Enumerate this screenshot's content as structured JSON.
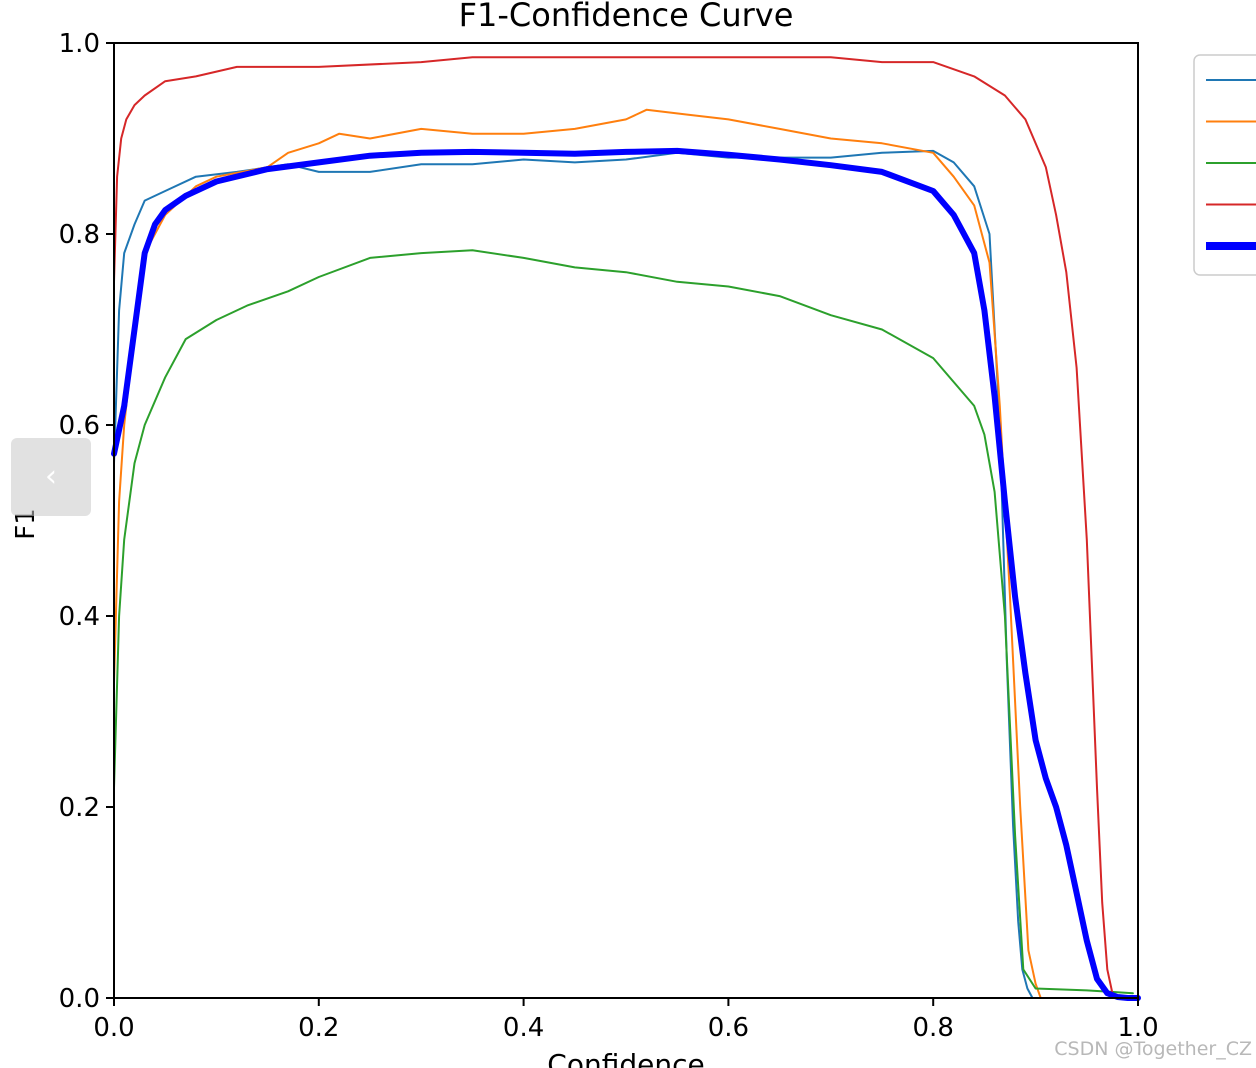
{
  "chart_data": {
    "type": "line",
    "title": "F1-Confidence Curve",
    "xlabel": "Confidence",
    "ylabel": "F1",
    "xlim": [
      0,
      1
    ],
    "ylim": [
      0,
      1
    ],
    "xticks": [
      "0.0",
      "0.2",
      "0.4",
      "0.6",
      "0.8",
      "1.0"
    ],
    "yticks": [
      "0.0",
      "0.2",
      "0.4",
      "0.6",
      "0.8",
      "1.0"
    ],
    "grid": false,
    "legend": "right, partially cut off",
    "series": [
      {
        "color": "#1f77b4",
        "width": 2,
        "x": [
          0.0,
          0.005,
          0.01,
          0.02,
          0.03,
          0.05,
          0.08,
          0.12,
          0.17,
          0.2,
          0.25,
          0.3,
          0.35,
          0.4,
          0.45,
          0.5,
          0.55,
          0.6,
          0.65,
          0.7,
          0.75,
          0.8,
          0.82,
          0.84,
          0.855,
          0.865,
          0.872,
          0.878,
          0.883,
          0.887,
          0.892,
          0.897
        ],
        "y": [
          0.56,
          0.72,
          0.78,
          0.81,
          0.835,
          0.845,
          0.86,
          0.865,
          0.873,
          0.865,
          0.865,
          0.873,
          0.873,
          0.878,
          0.875,
          0.878,
          0.885,
          0.88,
          0.88,
          0.88,
          0.885,
          0.887,
          0.875,
          0.85,
          0.8,
          0.6,
          0.35,
          0.18,
          0.08,
          0.03,
          0.01,
          0.0
        ]
      },
      {
        "color": "#ff7f0e",
        "width": 2,
        "x": [
          0.0,
          0.005,
          0.01,
          0.02,
          0.03,
          0.05,
          0.08,
          0.1,
          0.15,
          0.17,
          0.2,
          0.22,
          0.25,
          0.3,
          0.35,
          0.4,
          0.45,
          0.5,
          0.52,
          0.56,
          0.6,
          0.65,
          0.7,
          0.75,
          0.8,
          0.82,
          0.84,
          0.855,
          0.865,
          0.875,
          0.885,
          0.893,
          0.9,
          0.905
        ],
        "y": [
          0.33,
          0.52,
          0.6,
          0.7,
          0.78,
          0.82,
          0.85,
          0.86,
          0.87,
          0.885,
          0.895,
          0.905,
          0.9,
          0.91,
          0.905,
          0.905,
          0.91,
          0.92,
          0.93,
          0.925,
          0.92,
          0.91,
          0.9,
          0.895,
          0.885,
          0.86,
          0.83,
          0.77,
          0.62,
          0.42,
          0.2,
          0.05,
          0.015,
          0.0
        ]
      },
      {
        "color": "#2ca02c",
        "width": 2,
        "x": [
          0.0,
          0.005,
          0.01,
          0.02,
          0.03,
          0.05,
          0.07,
          0.1,
          0.13,
          0.17,
          0.2,
          0.25,
          0.3,
          0.35,
          0.4,
          0.45,
          0.5,
          0.55,
          0.6,
          0.65,
          0.7,
          0.75,
          0.8,
          0.82,
          0.84,
          0.85,
          0.86,
          0.87,
          0.88,
          0.888,
          0.9,
          0.95,
          0.98,
          0.995
        ],
        "y": [
          0.22,
          0.4,
          0.48,
          0.56,
          0.6,
          0.65,
          0.69,
          0.71,
          0.725,
          0.74,
          0.755,
          0.775,
          0.78,
          0.783,
          0.775,
          0.765,
          0.76,
          0.75,
          0.745,
          0.735,
          0.715,
          0.7,
          0.67,
          0.645,
          0.62,
          0.59,
          0.53,
          0.4,
          0.17,
          0.03,
          0.01,
          0.008,
          0.006,
          0.005
        ]
      },
      {
        "color": "#d62728",
        "width": 2,
        "x": [
          0.0,
          0.003,
          0.007,
          0.012,
          0.02,
          0.03,
          0.05,
          0.08,
          0.12,
          0.2,
          0.3,
          0.35,
          0.4,
          0.5,
          0.6,
          0.7,
          0.75,
          0.8,
          0.84,
          0.87,
          0.89,
          0.91,
          0.92,
          0.93,
          0.94,
          0.95,
          0.955,
          0.96,
          0.965,
          0.97,
          0.975,
          0.98
        ],
        "y": [
          0.75,
          0.86,
          0.9,
          0.92,
          0.935,
          0.945,
          0.96,
          0.965,
          0.975,
          0.975,
          0.98,
          0.985,
          0.985,
          0.985,
          0.985,
          0.985,
          0.98,
          0.98,
          0.965,
          0.945,
          0.92,
          0.87,
          0.82,
          0.76,
          0.66,
          0.48,
          0.35,
          0.22,
          0.1,
          0.03,
          0.005,
          0.0
        ]
      },
      {
        "color": "#0000ff",
        "width": 6,
        "x": [
          0.0,
          0.01,
          0.02,
          0.03,
          0.04,
          0.05,
          0.07,
          0.1,
          0.15,
          0.2,
          0.25,
          0.3,
          0.35,
          0.4,
          0.45,
          0.5,
          0.55,
          0.6,
          0.65,
          0.7,
          0.75,
          0.8,
          0.82,
          0.84,
          0.85,
          0.86,
          0.87,
          0.88,
          0.89,
          0.9,
          0.91,
          0.92,
          0.93,
          0.94,
          0.95,
          0.96,
          0.97,
          0.98,
          0.99,
          1.0
        ],
        "y": [
          0.57,
          0.62,
          0.7,
          0.78,
          0.81,
          0.825,
          0.84,
          0.855,
          0.868,
          0.875,
          0.882,
          0.885,
          0.886,
          0.885,
          0.884,
          0.886,
          0.887,
          0.883,
          0.878,
          0.872,
          0.865,
          0.845,
          0.82,
          0.78,
          0.72,
          0.63,
          0.52,
          0.42,
          0.34,
          0.27,
          0.23,
          0.2,
          0.16,
          0.11,
          0.06,
          0.02,
          0.005,
          0.001,
          0.0,
          0.0
        ]
      }
    ]
  },
  "watermark": "CSDN @Together_CZ"
}
